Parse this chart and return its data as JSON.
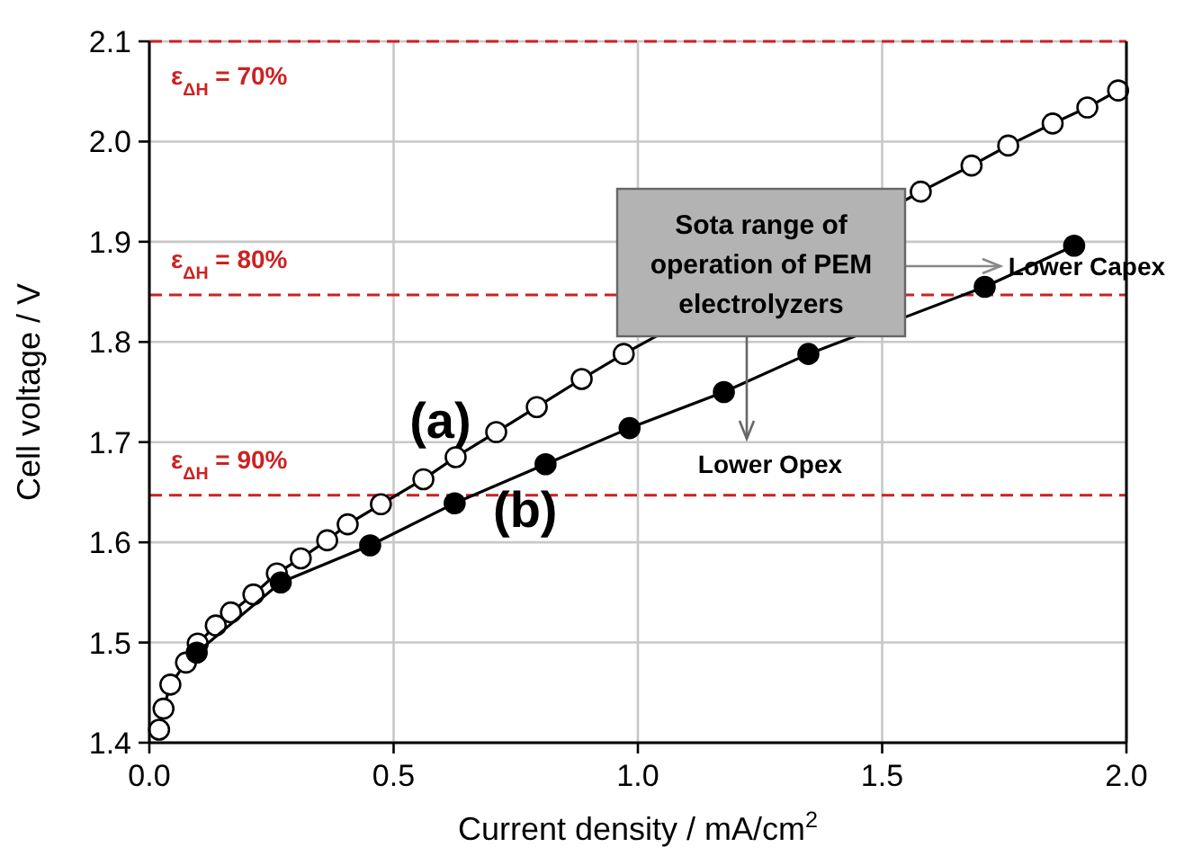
{
  "chart_data": {
    "type": "line",
    "xlabel": "Current density / mA/cm$^{2}$",
    "ylabel": "Cell voltage / V",
    "xlim": [
      0,
      2
    ],
    "xticks": [
      {
        "value": 0,
        "label": "0.0"
      },
      {
        "value": 0.5,
        "label": "0.5"
      },
      {
        "value": 1,
        "label": "1.0"
      },
      {
        "value": 1.5,
        "label": "1.5"
      },
      {
        "value": 2,
        "label": "2.0"
      }
    ],
    "ylim": [
      1.4,
      2.1
    ],
    "yticks": [
      1.4,
      1.5,
      1.6,
      1.7,
      1.8,
      1.9,
      {
        "value": 2,
        "label": "2.0"
      },
      2.1
    ],
    "grid": true,
    "series": [
      {
        "name": "(a)",
        "color": "#000000",
        "marker": "circle",
        "x": [
          0.02,
          0.029,
          0.043,
          0.075,
          0.099,
          0.136,
          0.167,
          0.213,
          0.261,
          0.31,
          0.364,
          0.406,
          0.474,
          0.561,
          0.627,
          0.71,
          0.793,
          0.885,
          0.971,
          1.579,
          1.683,
          1.758,
          1.849,
          1.92,
          1.983
        ],
        "values": [
          1.413,
          1.434,
          1.458,
          1.48,
          1.499,
          1.517,
          1.53,
          1.548,
          1.569,
          1.584,
          1.602,
          1.618,
          1.638,
          1.663,
          1.685,
          1.71,
          1.735,
          1.763,
          1.788,
          1.95,
          1.976,
          1.996,
          2.018,
          2.034,
          2.051
        ]
      },
      {
        "name": "(b)",
        "color": "#000000",
        "marker": "circle",
        "x": [
          0.097,
          0.269,
          0.452,
          0.625,
          0.811,
          0.983,
          1.176,
          1.349,
          1.71,
          1.893
        ],
        "values": [
          1.49,
          1.56,
          1.597,
          1.639,
          1.678,
          1.714,
          1.75,
          1.788,
          1.855,
          1.896
        ]
      }
    ],
    "ref_lines": [
      {
        "axis": "y",
        "value": 2.1,
        "color": "#cc2222",
        "line_style": "dashed"
      },
      {
        "axis": "y",
        "value": 1.847,
        "color": "#cc2222",
        "line_style": "dashed"
      },
      {
        "axis": "y",
        "value": 1.647,
        "color": "#cc2222",
        "line_style": "dashed"
      }
    ],
    "annotations": [
      "Sota range of\noperation of PEM\nelectrolyzers",
      "Lower Capex",
      "Lower Opex",
      "ε$_{ΔH}$ = 70%",
      "ε$_{ΔH}$ = 80%",
      "ε$_{ΔH}$ = 90%"
    ]
  }
}
